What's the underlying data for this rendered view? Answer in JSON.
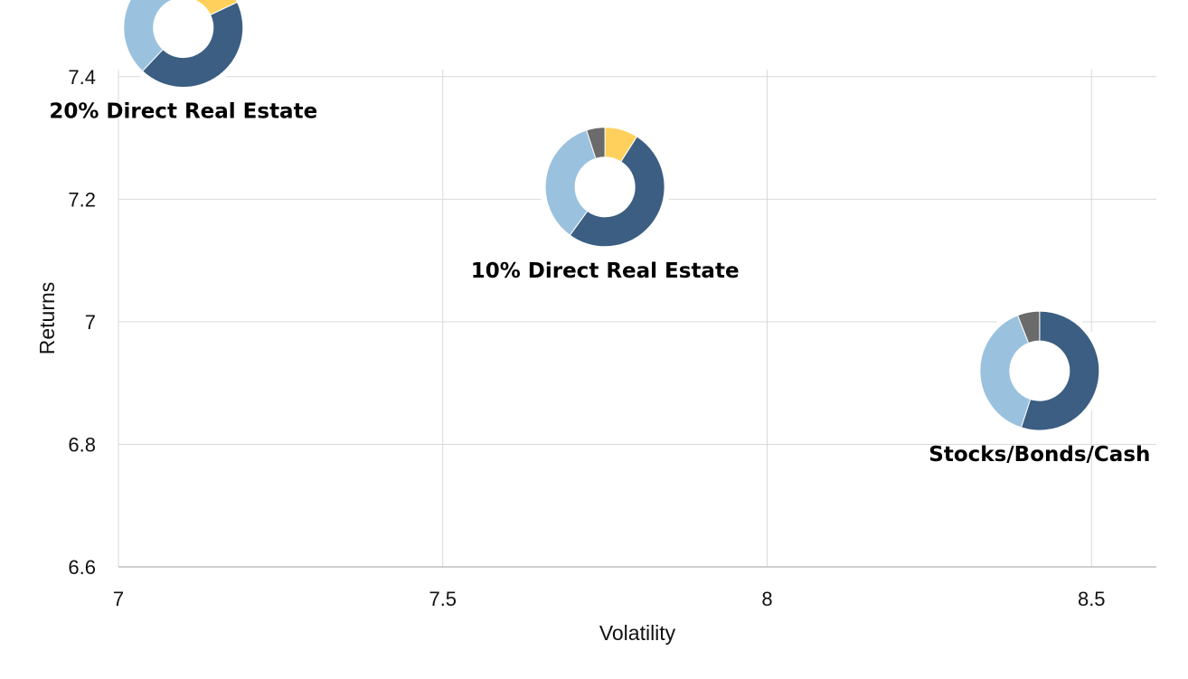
{
  "chart_data": {
    "type": "scatter",
    "title": "",
    "xlabel": "Volatility",
    "ylabel": "Returns",
    "xlim": [
      7,
      8.6
    ],
    "ylim": [
      6.6,
      7.5
    ],
    "x_ticks": [
      "7",
      "7.5",
      "8",
      "8.5"
    ],
    "y_ticks": [
      "6.6",
      "6.8",
      "7",
      "7.2",
      "7.4"
    ],
    "grid": true,
    "legend": "none",
    "marker": "donut",
    "segment_colors": [
      "#ffd15c",
      "#3b5e82",
      "#9ac2de",
      "#6b6b6b"
    ],
    "points": [
      {
        "label": "20% Direct Real Estate",
        "x": 7.1,
        "y": 7.48,
        "composition": [
          18,
          44,
          33,
          5
        ]
      },
      {
        "label": "10% Direct Real Estate",
        "x": 7.75,
        "y": 7.22,
        "composition": [
          9,
          51,
          35,
          5
        ]
      },
      {
        "label": "Stocks/Bonds/Cash",
        "x": 8.42,
        "y": 6.92,
        "composition": [
          0,
          55,
          39,
          6
        ]
      }
    ]
  }
}
